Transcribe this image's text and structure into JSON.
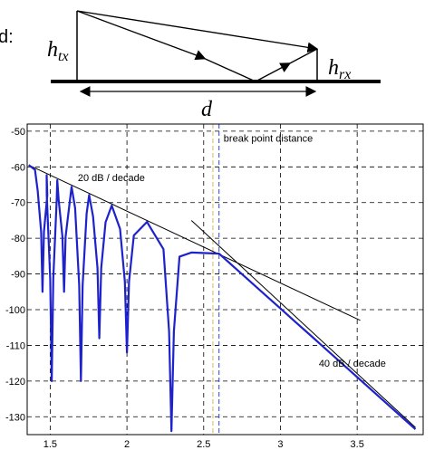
{
  "diagram": {
    "label_cut": "d:",
    "htx_base": "h",
    "htx_sub": "tx",
    "hrx_base": "h",
    "hrx_sub": "rx",
    "distance": "d"
  },
  "chart_data": {
    "type": "line",
    "title": "",
    "xlabel": "",
    "ylabel": "",
    "xlim": [
      1.35,
      3.93
    ],
    "ylim": [
      -135,
      -48
    ],
    "xticks": [
      1.5,
      2,
      2.5,
      3,
      3.5
    ],
    "xtick_labels": [
      "1.5",
      "2",
      "2.5",
      "3",
      "3.5"
    ],
    "yticks": [
      -50,
      -60,
      -70,
      -80,
      -90,
      -100,
      -110,
      -120,
      -130
    ],
    "ytick_labels": [
      "-50",
      "-60",
      "-70",
      "-80",
      "-90",
      "-100",
      "-110",
      "-120",
      "-130"
    ],
    "grid": true,
    "grid_style": "dashed",
    "series": [
      {
        "color": "#1e22cc",
        "model": "two-ray",
        "envelope_20db": {
          "x": [
            1.36,
            2.6
          ],
          "y": [
            -59.5,
            -84.3
          ]
        },
        "nulls": [
          {
            "x": 1.45,
            "y": -95
          },
          {
            "x": 1.51,
            "y": -120
          },
          {
            "x": 1.59,
            "y": -95
          },
          {
            "x": 1.7,
            "y": -120
          },
          {
            "x": 1.82,
            "y": -108
          },
          {
            "x": 2.0,
            "y": -112
          },
          {
            "x": 2.29,
            "y": -134
          }
        ],
        "asymptote_40db": {
          "x": [
            2.6,
            3.88
          ],
          "y": [
            -84.3,
            -133.5
          ]
        }
      }
    ],
    "reference_lines": [
      {
        "x": [
          1.36,
          3.52
        ],
        "y": [
          -59.5,
          -103
        ],
        "color": "#000000"
      },
      {
        "x": [
          2.42,
          3.88
        ],
        "y": [
          -75,
          -133
        ],
        "color": "#000000"
      }
    ],
    "vlines": [
      {
        "x": 2.6,
        "color": "#2f3fd0"
      },
      {
        "x": 2.56,
        "color": "#d4b860"
      }
    ],
    "annotations": [
      {
        "text": "break point distance",
        "x": 2.63,
        "y": -53
      },
      {
        "text": "20 dB / decade",
        "x": 1.68,
        "y": -64
      },
      {
        "text": "40 dB / decade",
        "x": 3.25,
        "y": -116
      }
    ]
  }
}
